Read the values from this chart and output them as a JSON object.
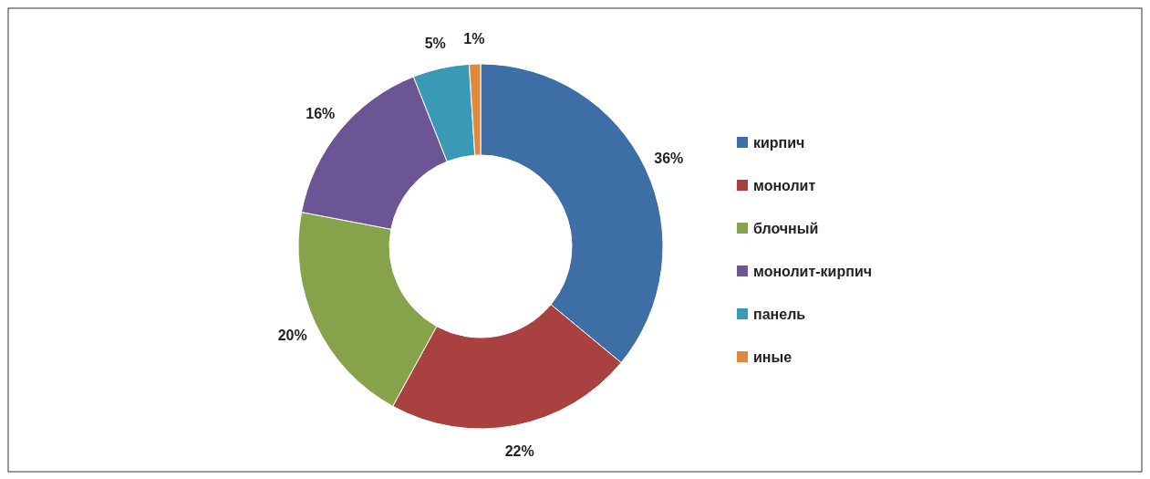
{
  "chart_data": {
    "type": "donut",
    "categories": [
      "кирпич",
      "монолит",
      "блочный",
      "монолит-кирпич",
      "панель",
      "иные"
    ],
    "values": [
      36,
      22,
      20,
      16,
      5,
      1
    ],
    "colors": [
      "#3d6fa6",
      "#a8413f",
      "#86a24a",
      "#6c5594",
      "#3a9ab5",
      "#e0893a"
    ],
    "value_labels": [
      "36%",
      "22%",
      "20%",
      "16%",
      "5%",
      "1%"
    ],
    "legend": "right"
  }
}
